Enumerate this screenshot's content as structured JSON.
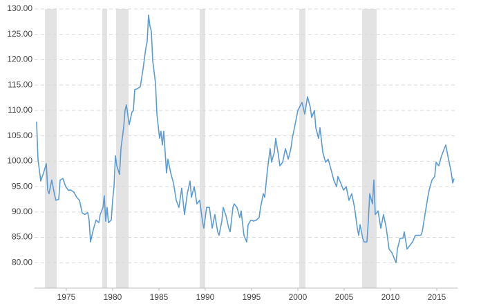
{
  "chart_data": {
    "type": "line",
    "x": [
      1971.79,
      1971.94,
      1972.24,
      1972.54,
      1972.84,
      1972.99,
      1973.13,
      1973.43,
      1973.73,
      1973.88,
      1974.18,
      1974.33,
      1974.63,
      1974.93,
      1975.22,
      1975.52,
      1975.82,
      1976.12,
      1976.42,
      1976.72,
      1977.01,
      1977.31,
      1977.46,
      1977.61,
      1977.91,
      1978.21,
      1978.51,
      1978.66,
      1978.96,
      1979.1,
      1979.25,
      1979.4,
      1979.55,
      1979.85,
      1980.0,
      1980.15,
      1980.3,
      1980.45,
      1980.75,
      1980.9,
      1981.19,
      1981.34,
      1981.49,
      1981.79,
      1982.09,
      1982.24,
      1982.39,
      1982.69,
      1982.99,
      1983.28,
      1983.58,
      1983.73,
      1983.88,
      1984.03,
      1984.18,
      1984.33,
      1984.63,
      1984.78,
      1985.07,
      1985.22,
      1985.37,
      1985.52,
      1985.67,
      1985.82,
      1985.97,
      1986.27,
      1986.57,
      1986.87,
      1987.16,
      1987.46,
      1987.76,
      1988.06,
      1988.36,
      1988.51,
      1988.81,
      1989.1,
      1989.4,
      1989.7,
      1989.85,
      1990.15,
      1990.45,
      1990.75,
      1991.04,
      1991.34,
      1991.49,
      1991.79,
      1991.94,
      1992.24,
      1992.54,
      1992.69,
      1992.99,
      1993.13,
      1993.43,
      1993.73,
      1993.88,
      1994.18,
      1994.48,
      1994.63,
      1994.93,
      1995.22,
      1995.52,
      1995.82,
      1995.97,
      1996.27,
      1996.42,
      1996.72,
      1997.01,
      1997.16,
      1997.46,
      1997.61,
      1997.91,
      1998.06,
      1998.36,
      1998.66,
      1998.96,
      1999.25,
      1999.4,
      1999.7,
      2000.0,
      2000.45,
      2000.75,
      2001.04,
      2001.34,
      2001.49,
      2001.79,
      2001.94,
      2002.24,
      2002.39,
      2002.69,
      2002.99,
      2003.28,
      2003.58,
      2003.88,
      2004.18,
      2004.33,
      2004.63,
      2004.93,
      2005.22,
      2005.52,
      2005.82,
      2006.12,
      2006.42,
      2006.57,
      2006.72,
      2007.01,
      2007.16,
      2007.46,
      2007.61,
      2007.76,
      2008.06,
      2008.21,
      2008.36,
      2008.66,
      2008.96,
      2009.25,
      2009.55,
      2009.85,
      2010.15,
      2010.45,
      2010.6,
      2010.75,
      2011.04,
      2011.34,
      2011.49,
      2011.79,
      2012.09,
      2012.39,
      2012.69,
      2012.99,
      2013.28,
      2013.43,
      2013.73,
      2014.03,
      2014.18,
      2014.48,
      2014.78,
      2014.93,
      2015.22,
      2015.52,
      2015.82,
      2015.97,
      2016.27,
      2016.57,
      2016.72,
      2016.87
    ],
    "values": [
      107.8,
      100.4,
      96.1,
      97.7,
      99.5,
      94.3,
      93.6,
      96.3,
      93.4,
      92.3,
      92.5,
      96.3,
      96.6,
      95.0,
      94.3,
      94.3,
      93.9,
      92.9,
      92.3,
      89.8,
      89.5,
      89.9,
      88.4,
      84.1,
      86.5,
      88.4,
      87.9,
      89.5,
      90.9,
      93.2,
      88.2,
      90.9,
      87.9,
      88.4,
      92.3,
      95.0,
      101.1,
      99.1,
      97.4,
      102.5,
      106.6,
      110.0,
      111.1,
      107.2,
      109.7,
      110.0,
      114.1,
      114.3,
      114.7,
      118.1,
      122.2,
      123.6,
      128.8,
      126.6,
      125.6,
      119.8,
      115.4,
      109.3,
      104.5,
      105.9,
      103.2,
      105.9,
      101.8,
      97.7,
      100.4,
      97.7,
      95.7,
      92.3,
      90.9,
      94.7,
      89.5,
      93.6,
      96.1,
      92.9,
      95.0,
      91.6,
      92.3,
      88.2,
      86.8,
      90.9,
      90.9,
      86.8,
      89.5,
      86.1,
      85.4,
      88.2,
      90.9,
      89.3,
      86.8,
      86.1,
      90.9,
      91.6,
      90.9,
      88.9,
      90.2,
      85.4,
      84.1,
      87.5,
      88.4,
      88.2,
      88.4,
      88.9,
      90.9,
      93.6,
      92.9,
      98.4,
      102.5,
      99.8,
      101.8,
      104.5,
      101.1,
      99.1,
      99.8,
      102.5,
      100.4,
      102.5,
      104.5,
      107.2,
      110.0,
      111.6,
      109.3,
      112.7,
      110.7,
      108.6,
      110.0,
      106.6,
      104.5,
      106.6,
      101.8,
      99.8,
      100.4,
      98.4,
      96.3,
      95.0,
      97.0,
      95.7,
      94.3,
      95.0,
      92.3,
      93.6,
      90.9,
      86.8,
      85.4,
      87.5,
      84.8,
      84.1,
      84.1,
      88.2,
      93.6,
      91.6,
      96.3,
      89.5,
      90.2,
      86.8,
      89.5,
      86.8,
      82.7,
      82.0,
      80.7,
      80.0,
      82.7,
      84.8,
      84.8,
      86.1,
      82.7,
      83.4,
      84.1,
      85.4,
      85.4,
      85.4,
      86.1,
      89.5,
      92.9,
      94.3,
      96.3,
      97.0,
      99.8,
      99.1,
      101.1,
      102.5,
      103.2,
      100.4,
      97.7,
      95.7,
      96.6
    ],
    "color": "#5b9bd5",
    "recessions": [
      [
        1972.69,
        1973.96
      ],
      [
        1978.88,
        1979.4
      ],
      [
        1980.37,
        1981.72
      ],
      [
        1989.4,
        1990.0
      ],
      [
        2000.15,
        2000.82
      ],
      [
        2006.94,
        2008.51
      ]
    ],
    "recession_color": "#e3e3e3",
    "xlim": [
      1971.57,
      2017.24
    ],
    "xticks": [
      1975,
      1980,
      1985,
      1990,
      1995,
      2000,
      2005,
      2010,
      2015
    ],
    "ylim": [
      75,
      130
    ],
    "yticks": [
      {
        "value": 80,
        "label": "80.00"
      },
      {
        "value": 85,
        "label": "85.00"
      },
      {
        "value": 90,
        "label": "90.00"
      },
      {
        "value": 95,
        "label": "95.00"
      },
      {
        "value": 100,
        "label": "100.00"
      },
      {
        "value": 105,
        "label": "105.00"
      },
      {
        "value": 110,
        "label": "110.00"
      },
      {
        "value": 115,
        "label": "115.00"
      },
      {
        "value": 120,
        "label": "120.00"
      },
      {
        "value": 125,
        "label": "125.00"
      },
      {
        "value": 130,
        "label": "130.00"
      }
    ],
    "grid": true
  }
}
